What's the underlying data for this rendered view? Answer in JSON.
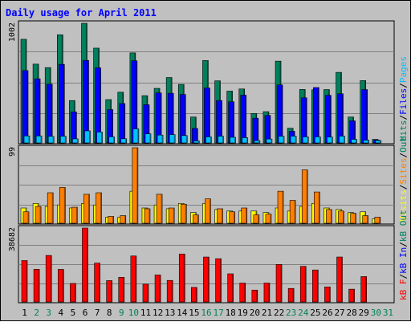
{
  "chart_data": {
    "type": "bar",
    "title": "Daily usage for April 2011",
    "days": [
      "1",
      "2",
      "3",
      "4",
      "5",
      "6",
      "7",
      "8",
      "9",
      "10",
      "11",
      "12",
      "13",
      "14",
      "15",
      "16",
      "17",
      "18",
      "19",
      "20",
      "21",
      "22",
      "23",
      "24",
      "25",
      "26",
      "27",
      "28",
      "29",
      "30",
      "31"
    ],
    "weekend_days": [
      "2",
      "3",
      "9",
      "10",
      "16",
      "17",
      "23",
      "24",
      "30",
      "31"
    ],
    "panels": [
      {
        "id": "hits",
        "ymax_label": "1002",
        "ymax": 1002,
        "series": [
          {
            "name": "Hits",
            "color": "#00805c",
            "values": [
              868,
              660,
              631,
              906,
              355,
              1002,
              794,
              363,
              425,
              754,
              396,
              457,
              548,
              490,
              217,
              690,
              520,
              434,
              452,
              247,
              262,
              685,
              123,
              448,
              445,
              447,
              591,
              217,
              522,
              30,
              0
            ]
          },
          {
            "name": "Files",
            "color": "#0000ff",
            "values": [
              606,
              537,
              492,
              658,
              260,
              691,
              629,
              279,
              330,
              688,
              320,
              419,
              416,
              406,
              121,
              460,
              355,
              345,
              400,
              207,
              231,
              486,
              98,
              378,
              464,
              399,
              412,
              185,
              447,
              25,
              0
            ]
          },
          {
            "name": "Pages",
            "color": "#00c0ff",
            "values": [
              59,
              59,
              55,
              56,
              34,
              101,
              91,
              51,
              35,
              118,
              76,
              66,
              70,
              62,
              17,
              51,
              56,
              47,
              44,
              20,
              33,
              56,
              57,
              51,
              51,
              49,
              57,
              30,
              23,
              20,
              0
            ]
          }
        ],
        "legend": [
          {
            "text": "Hits",
            "color": "#00805c"
          },
          {
            "text": "/",
            "color": "#000000"
          },
          {
            "text": "Files",
            "color": "#0000ff"
          },
          {
            "text": "/",
            "color": "#000000"
          },
          {
            "text": "Pages",
            "color": "#00c0ff"
          }
        ]
      },
      {
        "id": "visits",
        "ymax_label": "99",
        "ymax": 99,
        "series": [
          {
            "name": "Visits",
            "color": "#ffff00",
            "values": [
              20,
              26,
              22,
              24,
              20,
              26,
              24,
              8,
              8,
              42,
              20,
              24,
              19,
              26,
              14,
              26,
              18,
              16,
              16,
              16,
              14,
              20,
              16,
              22,
              26,
              20,
              18,
              14,
              15,
              6,
              0
            ]
          },
          {
            "name": "Sites",
            "color": "#ff8000",
            "values": [
              15,
              22,
              40,
              47,
              21,
              38,
              40,
              9,
              10,
              99,
              19,
              38,
              20,
              25,
              11,
              32,
              19,
              15,
              20,
              11,
              12,
              42,
              30,
              70,
              41,
              18,
              16,
              13,
              10,
              8,
              0
            ]
          }
        ],
        "legend": [
          {
            "text": "Visits",
            "color": "#ffff00"
          },
          {
            "text": "/",
            "color": "#000000"
          },
          {
            "text": "Sites",
            "color": "#ff8000"
          },
          {
            "text": "/",
            "color": "#000000"
          },
          {
            "text": "Out",
            "color": "#00805c"
          }
        ]
      },
      {
        "id": "kbytes",
        "ymax_label": "38682",
        "ymax": 38682,
        "series": [
          {
            "name": "kB F",
            "color": "#ff0000",
            "values": [
              21658,
              17080,
              24340,
              17034,
              9680,
              38682,
              20312,
              11170,
              12900,
              24070,
              9310,
              14120,
              11270,
              25080,
              7620,
              23520,
              22640,
              14720,
              9860,
              6208,
              9880,
              19620,
              7060,
              18620,
              16740,
              7870,
              23530,
              6680,
              13260,
              0,
              0
            ]
          }
        ],
        "legend": [
          {
            "text": "kB F",
            "color": "#ff0000"
          },
          {
            "text": "/",
            "color": "#000000"
          },
          {
            "text": "kB In",
            "color": "#0000ff"
          },
          {
            "text": "/",
            "color": "#000000"
          },
          {
            "text": "kB Out",
            "color": "#00805c"
          }
        ]
      }
    ],
    "grid": true,
    "legend_placement": "right-vertical"
  }
}
